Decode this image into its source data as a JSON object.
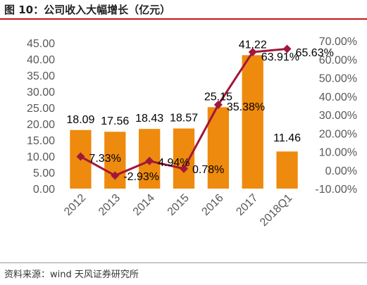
{
  "title": "图 10：公司收入大幅增长（亿元）",
  "source": "资料来源：wind 天风证券研究所",
  "colors": {
    "bar": "#ee8a0e",
    "line": "#a1173a",
    "accent": "#c4161c"
  },
  "chart_data": {
    "type": "bar",
    "categories": [
      "2012",
      "2013",
      "2014",
      "2015",
      "2016",
      "2017",
      "2018Q1"
    ],
    "series": [
      {
        "type": "bar",
        "values": [
          18.09,
          17.56,
          18.43,
          18.57,
          25.15,
          41.22,
          11.46
        ]
      },
      {
        "type": "line",
        "axis": "right",
        "values": [
          7.33,
          -2.93,
          4.94,
          0.78,
          35.38,
          63.91,
          65.63
        ]
      }
    ],
    "bar_labels": [
      "18.09",
      "17.56",
      "18.43",
      "18.57",
      "25.15",
      "41.22",
      "11.46"
    ],
    "line_labels": [
      "7.33%",
      "-2.93%",
      "4.94%",
      "0.78%",
      "35.38%",
      "63.91%",
      "65.63%"
    ],
    "y_left": {
      "min": 0,
      "max": 45,
      "step": 5,
      "ticks": [
        "0.00",
        "5.00",
        "10.00",
        "15.00",
        "20.00",
        "25.00",
        "30.00",
        "35.00",
        "40.00",
        "45.00"
      ]
    },
    "y_right": {
      "min": -10,
      "max": 70,
      "step": 10,
      "ticks": [
        "-10.00%",
        "0.00%",
        "10.00%",
        "20.00%",
        "30.00%",
        "40.00%",
        "50.00%",
        "60.00%",
        "70.00%"
      ]
    },
    "grid": false,
    "legend": "none"
  }
}
